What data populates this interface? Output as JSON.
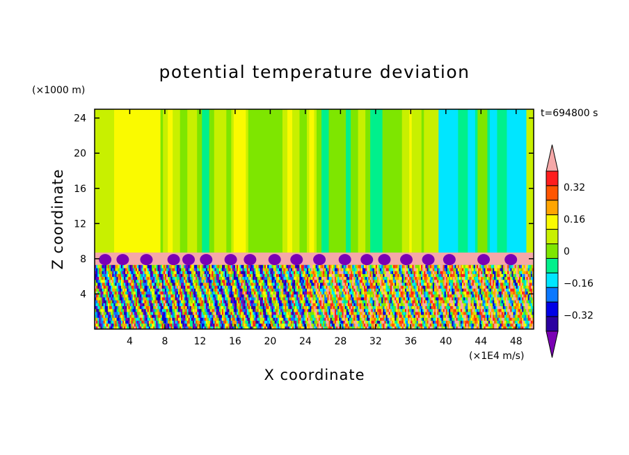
{
  "chart_data": {
    "type": "heatmap",
    "title": "potential temperature deviation",
    "xlabel": "X coordinate",
    "ylabel": "Z coordinate",
    "x_unit": "(×1E4 m/s)",
    "y_unit": "(×1000 m)",
    "time_label": "t=694800 s",
    "xlim": [
      0,
      50
    ],
    "ylim": [
      0,
      25
    ],
    "x_ticks": [
      "4",
      "8",
      "12",
      "16",
      "20",
      "24",
      "28",
      "32",
      "36",
      "40",
      "44",
      "48"
    ],
    "y_ticks": [
      "4",
      "8",
      "12",
      "16",
      "20",
      "24"
    ],
    "colorbar": {
      "levels": [
        -0.48,
        -0.4,
        -0.32,
        -0.24,
        -0.16,
        -0.08,
        0,
        0.08,
        0.16,
        0.24,
        0.32,
        0.4,
        0.48
      ],
      "tick_labels": [
        "0.32",
        "0.16",
        "0",
        "−0.16",
        "−0.32"
      ],
      "tick_values": [
        0.32,
        0.16,
        0,
        -0.16,
        -0.32
      ],
      "colors": [
        "#7a00b4",
        "#2a00a0",
        "#0000e6",
        "#0a78ff",
        "#00e6ff",
        "#00f08c",
        "#7ee600",
        "#c8f000",
        "#fafa00",
        "#ffa500",
        "#ff5500",
        "#ff1e1e",
        "#f5a8a8"
      ]
    },
    "fields": [
      {
        "region": "upper layer z 8.7–25",
        "dominant_value": 0.04,
        "range": [
          -0.24,
          0.2
        ]
      },
      {
        "region": "warm column x≈3.5–6",
        "value": 0.2
      },
      {
        "region": "cool column x≈40–49",
        "value": -0.12
      },
      {
        "region": "inversion band z 7.3–8.7",
        "value": 0.48
      },
      {
        "region": "turbulent layer z 0–7.3",
        "range": [
          -0.48,
          0.48
        ]
      }
    ]
  }
}
